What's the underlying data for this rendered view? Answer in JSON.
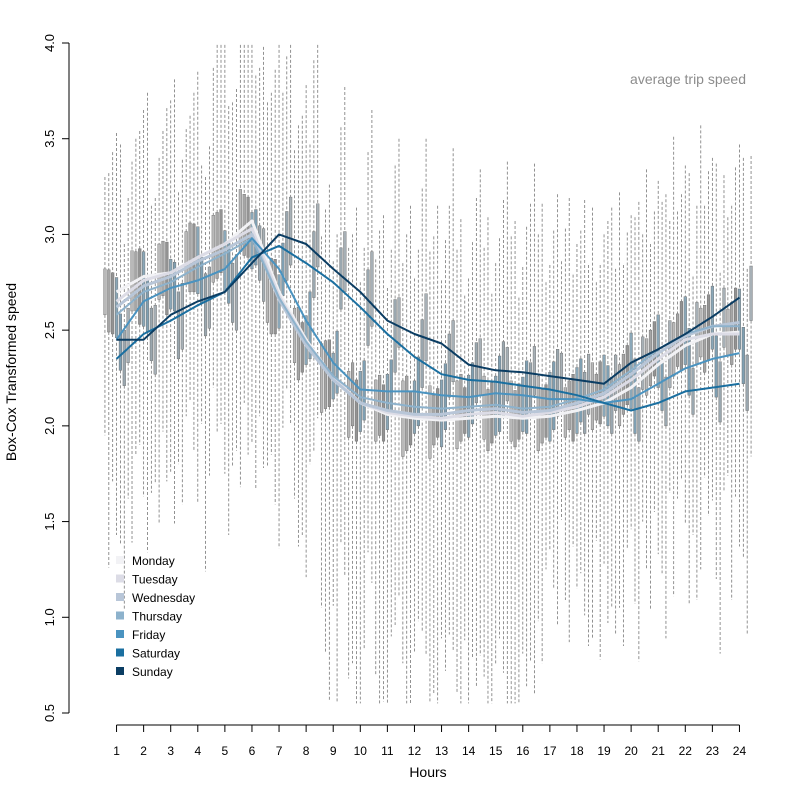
{
  "chart_data": {
    "type": "line",
    "title": "average trip speed",
    "xlabel": "Hours",
    "ylabel": "Box-Cox Transformed speed",
    "x": [
      1,
      2,
      3,
      4,
      5,
      6,
      7,
      8,
      9,
      10,
      11,
      12,
      13,
      14,
      15,
      16,
      17,
      18,
      19,
      20,
      21,
      22,
      23,
      24
    ],
    "x_ticks": [
      "1",
      "2",
      "3",
      "4",
      "5",
      "6",
      "7",
      "8",
      "9",
      "10",
      "11",
      "12",
      "13",
      "14",
      "15",
      "16",
      "17",
      "18",
      "19",
      "20",
      "21",
      "22",
      "23",
      "24"
    ],
    "y_ticks": [
      "0.5",
      "1.0",
      "1.5",
      "2.0",
      "2.5",
      "3.0",
      "3.5",
      "4.0"
    ],
    "ylim": [
      0.5,
      4.0
    ],
    "xlim": [
      0.5,
      24.5
    ],
    "legend_position": "bottom-left",
    "grid": false,
    "series": [
      {
        "name": "Monday",
        "color": "#f2f2f5",
        "values": [
          2.7,
          2.78,
          2.8,
          2.88,
          2.95,
          3.07,
          2.7,
          2.45,
          2.25,
          2.12,
          2.06,
          2.04,
          2.03,
          2.04,
          2.05,
          2.04,
          2.05,
          2.08,
          2.12,
          2.2,
          2.32,
          2.42,
          2.48,
          2.49
        ]
      },
      {
        "name": "Tuesday",
        "color": "#dcdce6",
        "values": [
          2.65,
          2.76,
          2.8,
          2.88,
          2.95,
          3.03,
          2.68,
          2.44,
          2.25,
          2.12,
          2.07,
          2.05,
          2.04,
          2.06,
          2.07,
          2.05,
          2.07,
          2.1,
          2.15,
          2.24,
          2.35,
          2.45,
          2.48,
          2.48
        ]
      },
      {
        "name": "Wednesday",
        "color": "#b8c6d8",
        "values": [
          2.62,
          2.73,
          2.78,
          2.86,
          2.92,
          3.0,
          2.66,
          2.42,
          2.24,
          2.12,
          2.08,
          2.06,
          2.06,
          2.08,
          2.09,
          2.07,
          2.08,
          2.12,
          2.17,
          2.27,
          2.38,
          2.47,
          2.52,
          2.54
        ]
      },
      {
        "name": "Thursday",
        "color": "#8db2cc",
        "values": [
          2.58,
          2.7,
          2.75,
          2.83,
          2.9,
          2.98,
          2.67,
          2.44,
          2.26,
          2.15,
          2.12,
          2.1,
          2.09,
          2.1,
          2.11,
          2.09,
          2.1,
          2.14,
          2.19,
          2.29,
          2.4,
          2.48,
          2.52,
          2.52
        ]
      },
      {
        "name": "Friday",
        "color": "#4a93c0",
        "values": [
          2.45,
          2.65,
          2.72,
          2.76,
          2.82,
          2.98,
          2.82,
          2.55,
          2.33,
          2.19,
          2.18,
          2.18,
          2.16,
          2.15,
          2.17,
          2.16,
          2.14,
          2.14,
          2.12,
          2.14,
          2.22,
          2.3,
          2.35,
          2.38
        ]
      },
      {
        "name": "Saturday",
        "color": "#1a6fa0",
        "values": [
          2.35,
          2.48,
          2.55,
          2.63,
          2.7,
          2.88,
          2.94,
          2.85,
          2.75,
          2.62,
          2.48,
          2.36,
          2.27,
          2.24,
          2.23,
          2.21,
          2.19,
          2.16,
          2.12,
          2.08,
          2.12,
          2.18,
          2.2,
          2.22
        ]
      },
      {
        "name": "Sunday",
        "color": "#0b3d63",
        "values": [
          2.45,
          2.45,
          2.58,
          2.65,
          2.7,
          2.85,
          3.0,
          2.95,
          2.82,
          2.7,
          2.55,
          2.48,
          2.43,
          2.32,
          2.29,
          2.28,
          2.26,
          2.24,
          2.22,
          2.33,
          2.4,
          2.48,
          2.57,
          2.67
        ]
      }
    ]
  }
}
